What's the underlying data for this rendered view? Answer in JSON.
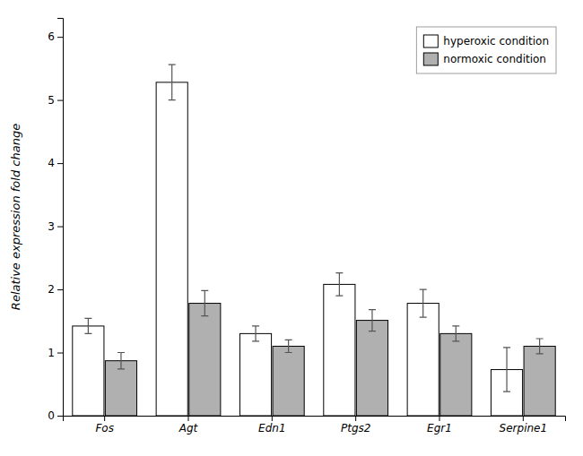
{
  "chart_data": {
    "type": "bar",
    "categories": [
      "Fos",
      "Agt",
      "Edn1",
      "Ptgs2",
      "Egr1",
      "Serpine1"
    ],
    "series": [
      {
        "name": "hyperoxic condition",
        "color": "#FFFFFF",
        "values": [
          1.42,
          5.28,
          1.3,
          2.08,
          1.78,
          0.73
        ],
        "errors": [
          0.12,
          0.28,
          0.12,
          0.18,
          0.22,
          0.35
        ]
      },
      {
        "name": "normoxic condition",
        "color": "#B0B0B0",
        "values": [
          0.87,
          1.78,
          1.1,
          1.51,
          1.3,
          1.1
        ],
        "errors": [
          0.13,
          0.2,
          0.1,
          0.17,
          0.12,
          0.12
        ]
      }
    ],
    "ylabel": "Relative expression fold change",
    "ylim": [
      0,
      6.3
    ],
    "yticks": [
      0,
      1,
      2,
      3,
      4,
      5,
      6
    ],
    "legend": "upper right"
  }
}
